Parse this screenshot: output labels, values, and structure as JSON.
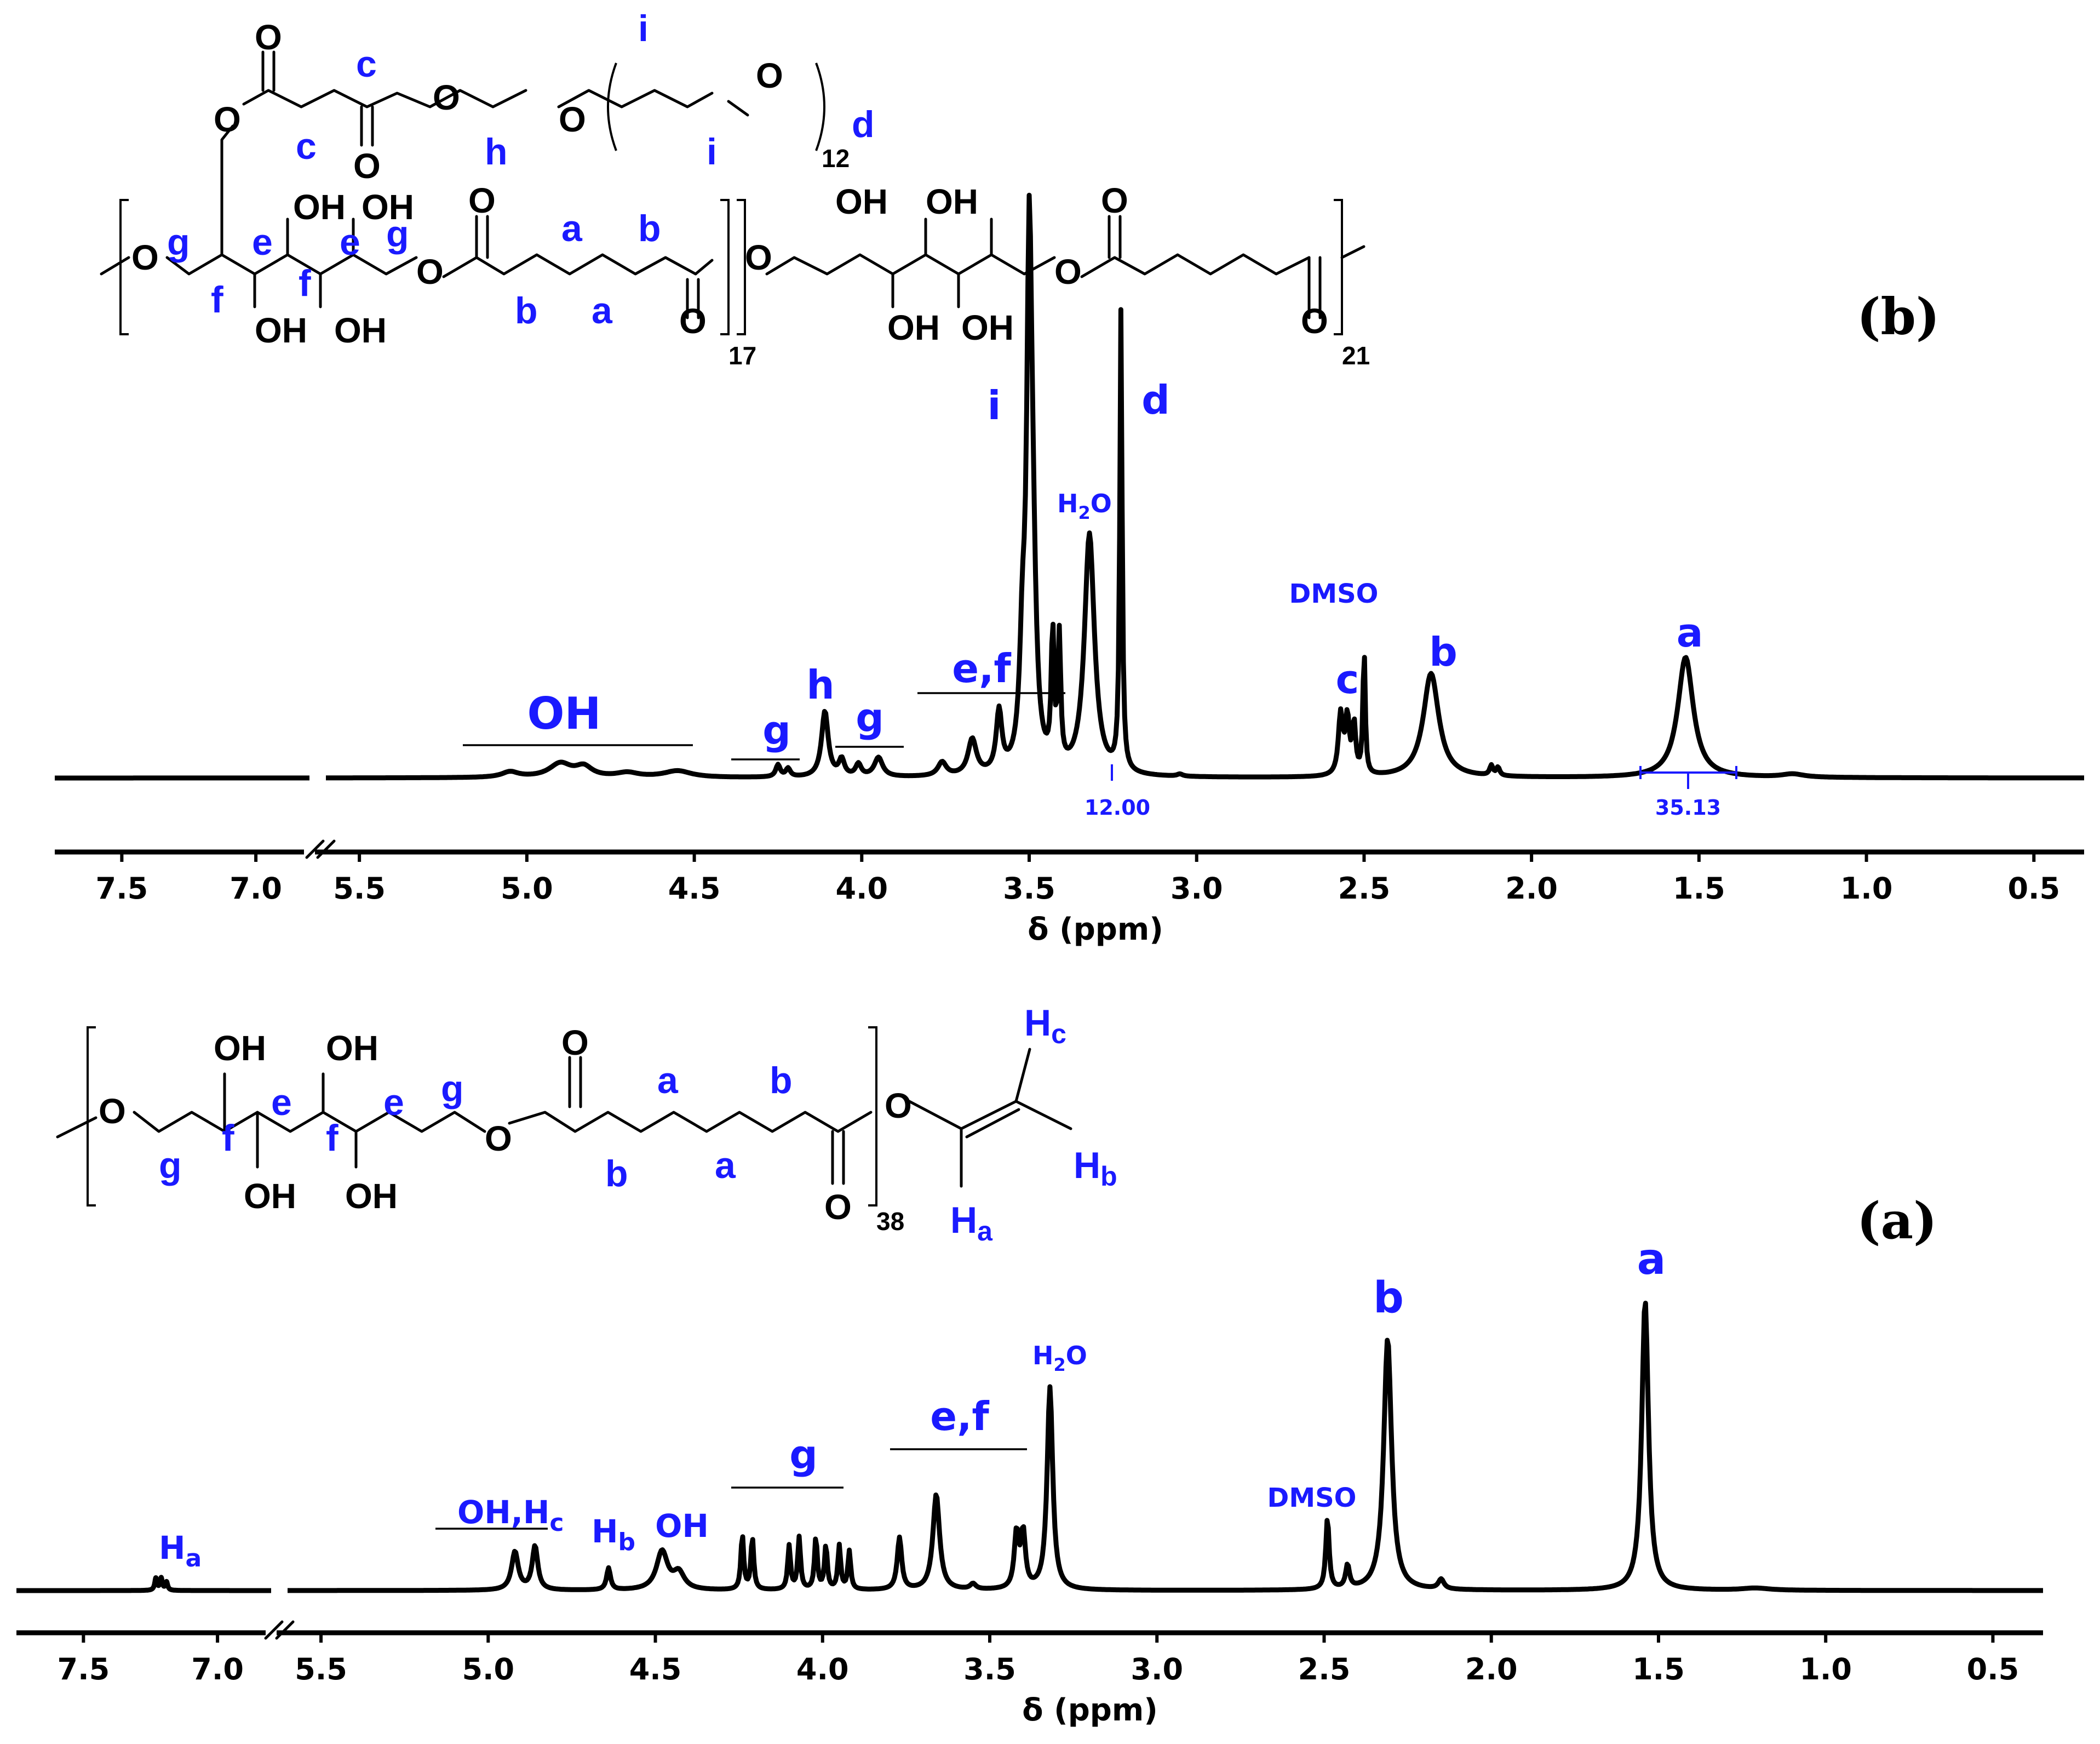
{
  "chart_data": [
    {
      "panel": "(b)",
      "type": "line",
      "xlabel": "δ (ppm)",
      "axis_break": [
        5.6,
        6.8
      ],
      "xlim": [
        7.75,
        0.35
      ],
      "x_ticks": [
        "7.5",
        "7.0",
        "5.5",
        "5.0",
        "4.5",
        "4.0",
        "3.5",
        "3.0",
        "2.5",
        "2.0",
        "1.5",
        "1.0",
        "0.5"
      ],
      "peaks": [
        {
          "label": "i",
          "ppm": 3.5
        },
        {
          "label": "d",
          "ppm": 3.23
        },
        {
          "label": "H2O",
          "ppm": 3.32
        },
        {
          "label": "DMSO",
          "ppm": 2.5
        },
        {
          "label": "c",
          "ppm": 2.56
        },
        {
          "label": "b",
          "ppm": 2.3
        },
        {
          "label": "a",
          "ppm": 1.54
        },
        {
          "label": "h",
          "ppm": 4.11
        },
        {
          "label": "g",
          "ppm": 4.24
        },
        {
          "label": "g",
          "ppm": 3.95
        },
        {
          "label": "e,f",
          "ppm": 3.6
        },
        {
          "label": "OH",
          "ppm": 4.85
        }
      ],
      "integrals": [
        {
          "value": "12.00",
          "ppm": 3.23
        },
        {
          "value": "35.13",
          "ppm": 1.53
        }
      ],
      "structure": {
        "subscripts": [
          "12",
          "17",
          "21"
        ],
        "atoms": [
          "O",
          "OH"
        ],
        "labels": [
          "a",
          "b",
          "c",
          "d",
          "e",
          "f",
          "g",
          "h",
          "i"
        ]
      }
    },
    {
      "panel": "(a)",
      "type": "line",
      "xlabel": "δ (ppm)",
      "axis_break": [
        5.6,
        6.8
      ],
      "xlim": [
        7.75,
        0.35
      ],
      "x_ticks": [
        "7.5",
        "7.0",
        "5.5",
        "5.0",
        "4.5",
        "4.0",
        "3.5",
        "3.0",
        "2.5",
        "2.0",
        "1.5",
        "1.0",
        "0.5"
      ],
      "peaks": [
        {
          "label": "a",
          "ppm": 1.54
        },
        {
          "label": "b",
          "ppm": 2.31
        },
        {
          "label": "H2O",
          "ppm": 3.32
        },
        {
          "label": "DMSO",
          "ppm": 2.5
        },
        {
          "label": "e,f",
          "ppm": 3.66
        },
        {
          "label": "g",
          "ppm": 4.05
        },
        {
          "label": "OH",
          "ppm": 4.48
        },
        {
          "label": "Hb",
          "ppm": 4.64
        },
        {
          "label": "OH,Hc",
          "ppm": 4.88
        },
        {
          "label": "Ha",
          "ppm": 7.21
        }
      ],
      "structure": {
        "subscripts": [
          "38"
        ],
        "atoms": [
          "O",
          "OH"
        ],
        "labels": [
          "a",
          "b",
          "e",
          "f",
          "g",
          "Ha",
          "Hb",
          "Hc"
        ]
      }
    }
  ],
  "text": {
    "panel_b": "(b)",
    "panel_a": "(a)",
    "xlabel": "δ (ppm)",
    "lbl_i": "i",
    "lbl_d": "d",
    "lbl_h": "h",
    "lbl_g": "g",
    "lbl_ef": "e,f",
    "lbl_oh": "OH",
    "lbl_c": "c",
    "lbl_b": "b",
    "lbl_a": "a",
    "lbl_dmso": "DMSO",
    "lbl_water_h": "H",
    "lbl_water_2": "2",
    "lbl_water_o": "O",
    "lbl_ohhc": "OH,H",
    "lbl_ohhc_sub": "c",
    "lbl_hb": "H",
    "lbl_hb_sub": "b",
    "lbl_ha": "H",
    "lbl_ha_sub": "a",
    "int_12": "12.00",
    "int_35": "35.13",
    "atom_o": "O",
    "atom_oh": "OH",
    "sub_12": "12",
    "sub_17": "17",
    "sub_21": "21",
    "sub_38": "38",
    "s_a": "a",
    "s_b": "b",
    "s_c": "c",
    "s_d": "d",
    "s_e": "e",
    "s_f": "f",
    "s_g": "g",
    "s_h": "h",
    "s_i": "i",
    "s_H": "H",
    "s_Ha": "a",
    "s_Hb": "b",
    "s_Hc": "c"
  },
  "colors": {
    "label_blue": "#1a1aff",
    "trace": "#000000"
  }
}
